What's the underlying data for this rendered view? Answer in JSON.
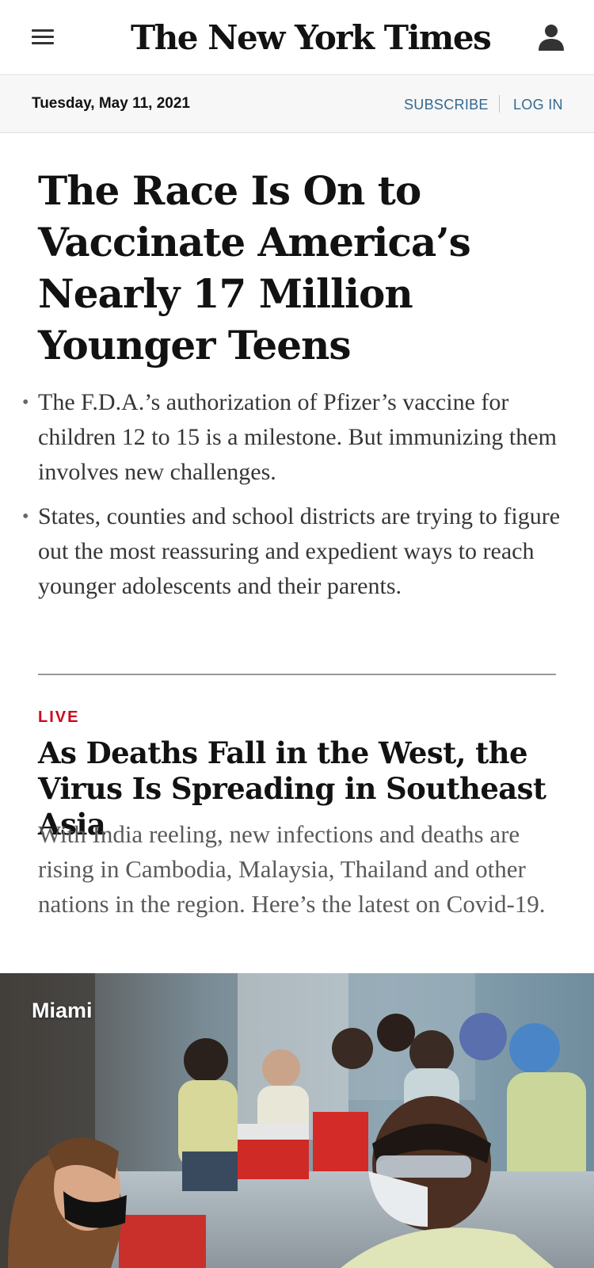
{
  "header": {
    "menu_icon": "hamburger-menu-icon",
    "logo_text": "The New York Times",
    "account_icon": "person-icon"
  },
  "datebar": {
    "date": "Tuesday, May 11, 2021",
    "subscribe_label": "SUBSCRIBE",
    "login_label": "LOG IN"
  },
  "lead_story": {
    "headline": "The Race Is On to Vaccinate America’s Nearly 17 Million Younger Teens",
    "bullets": [
      "The F.D.A.’s authorization of Pfizer’s vaccine for children 12 to 15 is a milestone. But immunizing them involves new challenges.",
      "States, counties and school districts are trying to figure out the most reassuring and expedient ways to reach younger adolescents and their parents."
    ]
  },
  "live_story": {
    "kicker": "LIVE",
    "headline": "As Deaths Fall in the West, the Virus Is Spreading in Southeast Asia",
    "summary": "With India reeling, new infections and deaths are rising in Cambodia, Malaysia, Thailand and other nations in the region. Here’s the latest on Covid-19."
  },
  "photo": {
    "label": "Miami"
  },
  "colors": {
    "link_blue": "#326891",
    "live_red": "#d0021b",
    "datebar_bg": "#f7f7f7"
  }
}
